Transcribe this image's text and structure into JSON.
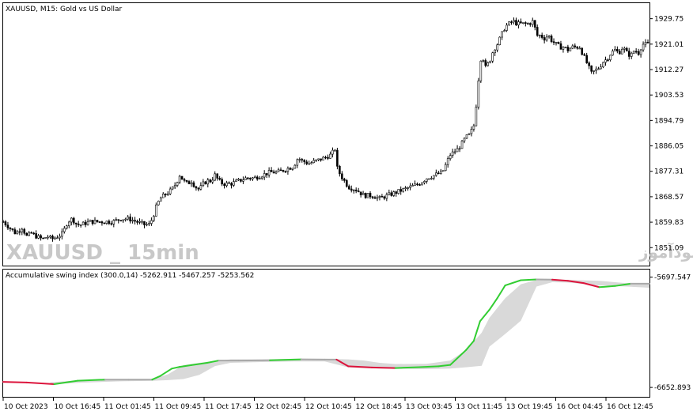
{
  "main_panel": {
    "title": "XAUUSD, M15:  Gold vs US Dollar",
    "watermark_left": "XAUUSD _ 15min",
    "watermark_right": "انتشار در سایت سودآموز"
  },
  "indicator_panel": {
    "title": "Accumulative swing index (300.0,14) -5262.911 -5467.257 -5253.562"
  },
  "colors": {
    "candle": "#000000",
    "line_up": "#32cd32",
    "line_down": "#dc143c",
    "line_flat": "#a9a9a9",
    "band": "#d9d9d9",
    "grid": "#000000"
  },
  "chart_data": [
    {
      "type": "candlestick",
      "title": "XAUUSD, M15:  Gold vs US Dollar",
      "ylim": [
        1846.0,
        1934.0
      ],
      "y_ticks": [
        1929.75,
        1921.01,
        1912.27,
        1903.53,
        1894.79,
        1886.05,
        1877.31,
        1868.57,
        1859.83,
        1851.09
      ],
      "close_path": [
        [
          0,
          1860
        ],
        [
          8,
          1858
        ],
        [
          16,
          1856
        ],
        [
          24,
          1858
        ],
        [
          30,
          1855
        ],
        [
          36,
          1856
        ],
        [
          42,
          1855
        ],
        [
          50,
          1854
        ],
        [
          56,
          1855
        ],
        [
          62,
          1854
        ],
        [
          70,
          1855
        ],
        [
          76,
          1856
        ],
        [
          82,
          1860
        ],
        [
          88,
          1861
        ],
        [
          94,
          1859
        ],
        [
          100,
          1859
        ],
        [
          110,
          1860
        ],
        [
          120,
          1860
        ],
        [
          130,
          1860
        ],
        [
          140,
          1860
        ],
        [
          150,
          1861
        ],
        [
          160,
          1861
        ],
        [
          170,
          1860
        ],
        [
          180,
          1859
        ],
        [
          186,
          1859
        ],
        [
          190,
          1861
        ],
        [
          195,
          1865
        ],
        [
          200,
          1868
        ],
        [
          205,
          1869
        ],
        [
          210,
          1870
        ],
        [
          215,
          1871
        ],
        [
          220,
          1873
        ],
        [
          225,
          1876
        ],
        [
          230,
          1874
        ],
        [
          235,
          1873
        ],
        [
          240,
          1874
        ],
        [
          245,
          1872
        ],
        [
          250,
          1871
        ],
        [
          255,
          1873
        ],
        [
          260,
          1874
        ],
        [
          265,
          1874
        ],
        [
          270,
          1876
        ],
        [
          275,
          1874
        ],
        [
          280,
          1873
        ],
        [
          290,
          1873
        ],
        [
          300,
          1874
        ],
        [
          310,
          1875
        ],
        [
          320,
          1875
        ],
        [
          330,
          1876
        ],
        [
          340,
          1877
        ],
        [
          350,
          1877
        ],
        [
          360,
          1878
        ],
        [
          370,
          1879
        ],
        [
          376,
          1882
        ],
        [
          380,
          1881
        ],
        [
          390,
          1880
        ],
        [
          400,
          1881
        ],
        [
          410,
          1882
        ],
        [
          418,
          1883
        ],
        [
          423,
          1885
        ],
        [
          425,
          1879
        ],
        [
          430,
          1876
        ],
        [
          435,
          1874
        ],
        [
          440,
          1872
        ],
        [
          450,
          1871
        ],
        [
          460,
          1869
        ],
        [
          470,
          1869
        ],
        [
          480,
          1868
        ],
        [
          490,
          1869
        ],
        [
          500,
          1870
        ],
        [
          510,
          1871
        ],
        [
          520,
          1872
        ],
        [
          530,
          1873
        ],
        [
          540,
          1875
        ],
        [
          550,
          1876
        ],
        [
          560,
          1877
        ],
        [
          565,
          1880
        ],
        [
          570,
          1883
        ],
        [
          575,
          1884
        ],
        [
          580,
          1885
        ],
        [
          585,
          1887
        ],
        [
          590,
          1889
        ],
        [
          595,
          1890
        ],
        [
          600,
          1893
        ],
        [
          603,
          1900
        ],
        [
          607,
          1912
        ],
        [
          610,
          1918
        ],
        [
          615,
          1913
        ],
        [
          620,
          1915
        ],
        [
          625,
          1919
        ],
        [
          630,
          1921
        ],
        [
          635,
          1924
        ],
        [
          640,
          1927
        ],
        [
          645,
          1928
        ],
        [
          650,
          1929
        ],
        [
          655,
          1928
        ],
        [
          660,
          1928
        ],
        [
          665,
          1928
        ],
        [
          670,
          1928
        ],
        [
          676,
          1929
        ],
        [
          680,
          1924
        ],
        [
          685,
          1924
        ],
        [
          690,
          1923
        ],
        [
          695,
          1924
        ],
        [
          700,
          1922
        ],
        [
          705,
          1921
        ],
        [
          710,
          1920
        ],
        [
          715,
          1920
        ],
        [
          720,
          1919
        ],
        [
          725,
          1920
        ],
        [
          730,
          1920
        ],
        [
          735,
          1920
        ],
        [
          740,
          1917
        ],
        [
          745,
          1914
        ],
        [
          750,
          1911
        ],
        [
          755,
          1912
        ],
        [
          760,
          1913
        ],
        [
          765,
          1915
        ],
        [
          770,
          1916
        ],
        [
          775,
          1918
        ],
        [
          780,
          1919
        ],
        [
          785,
          1918
        ],
        [
          790,
          1920
        ],
        [
          795,
          1918
        ],
        [
          800,
          1917
        ],
        [
          805,
          1919
        ],
        [
          810,
          1918
        ],
        [
          815,
          1921
        ],
        [
          820,
          1921
        ],
        [
          824,
          1921
        ]
      ]
    },
    {
      "type": "line",
      "title": "Accumulative swing index (300.0,14) -5262.911 -5467.257 -5253.562",
      "ylim": [
        -6700.0,
        -5660.0
      ],
      "y_ticks": [
        -5697.547,
        -6652.893
      ],
      "series": [
        {
          "values": [
            [
              0,
              -6605
            ],
            [
              30,
              -6610
            ],
            [
              65,
              -6625
            ],
            [
              95,
              -6595
            ],
            [
              130,
              -6585
            ],
            [
              160,
              -6585
            ],
            [
              190,
              -6585
            ],
            [
              200,
              -6555
            ],
            [
              215,
              -6490
            ],
            [
              225,
              -6475
            ],
            [
              240,
              -6460
            ],
            [
              260,
              -6440
            ],
            [
              275,
              -6420
            ],
            [
              300,
              -6420
            ],
            [
              340,
              -6418
            ],
            [
              380,
              -6410
            ],
            [
              410,
              -6412
            ],
            [
              425,
              -6412
            ],
            [
              440,
              -6470
            ],
            [
              470,
              -6480
            ],
            [
              500,
              -6485
            ],
            [
              530,
              -6478
            ],
            [
              555,
              -6470
            ],
            [
              570,
              -6458
            ],
            [
              590,
              -6330
            ],
            [
              600,
              -6250
            ],
            [
              608,
              -6080
            ],
            [
              620,
              -5980
            ],
            [
              630,
              -5880
            ],
            [
              640,
              -5770
            ],
            [
              660,
              -5725
            ],
            [
              680,
              -5718
            ],
            [
              700,
              -5720
            ],
            [
              720,
              -5730
            ],
            [
              740,
              -5750
            ],
            [
              760,
              -5785
            ],
            [
              780,
              -5775
            ],
            [
              800,
              -5755
            ],
            [
              824,
              -5755
            ]
          ]
        }
      ],
      "band": {
        "upper": [
          [
            60,
            -6608
          ],
          [
            100,
            -6590
          ],
          [
            150,
            -6582
          ],
          [
            190,
            -6580
          ],
          [
            210,
            -6540
          ],
          [
            230,
            -6460
          ],
          [
            250,
            -6440
          ],
          [
            270,
            -6425
          ],
          [
            290,
            -6410
          ],
          [
            330,
            -6410
          ],
          [
            370,
            -6405
          ],
          [
            410,
            -6405
          ],
          [
            440,
            -6410
          ],
          [
            460,
            -6420
          ],
          [
            480,
            -6440
          ],
          [
            500,
            -6450
          ],
          [
            540,
            -6448
          ],
          [
            570,
            -6420
          ],
          [
            590,
            -6330
          ],
          [
            610,
            -6180
          ],
          [
            620,
            -6050
          ],
          [
            640,
            -5880
          ],
          [
            660,
            -5760
          ],
          [
            680,
            -5722
          ],
          [
            700,
            -5720
          ],
          [
            720,
            -5722
          ],
          [
            760,
            -5730
          ],
          [
            790,
            -5748
          ],
          [
            824,
            -5760
          ]
        ],
        "lower": [
          [
            60,
            -6625
          ],
          [
            100,
            -6612
          ],
          [
            150,
            -6600
          ],
          [
            190,
            -6595
          ],
          [
            210,
            -6590
          ],
          [
            230,
            -6580
          ],
          [
            250,
            -6545
          ],
          [
            270,
            -6468
          ],
          [
            290,
            -6440
          ],
          [
            330,
            -6433
          ],
          [
            370,
            -6428
          ],
          [
            410,
            -6428
          ],
          [
            440,
            -6480
          ],
          [
            460,
            -6485
          ],
          [
            480,
            -6490
          ],
          [
            500,
            -6492
          ],
          [
            540,
            -6495
          ],
          [
            570,
            -6490
          ],
          [
            590,
            -6478
          ],
          [
            610,
            -6465
          ],
          [
            620,
            -6300
          ],
          [
            640,
            -6190
          ],
          [
            660,
            -6075
          ],
          [
            680,
            -5780
          ],
          [
            700,
            -5742
          ],
          [
            720,
            -5745
          ],
          [
            760,
            -5770
          ],
          [
            790,
            -5778
          ],
          [
            824,
            -5790
          ]
        ]
      }
    }
  ],
  "x_axis": {
    "labels": [
      "10 Oct 2023",
      "10 Oct 16:45",
      "11 Oct 01:45",
      "11 Oct 09:45",
      "11 Oct 17:45",
      "12 Oct 02:45",
      "12 Oct 10:45",
      "12 Oct 18:45",
      "13 Oct 03:45",
      "13 Oct 11:45",
      "13 Oct 19:45",
      "16 Oct 04:45",
      "16 Oct 12:45"
    ]
  }
}
